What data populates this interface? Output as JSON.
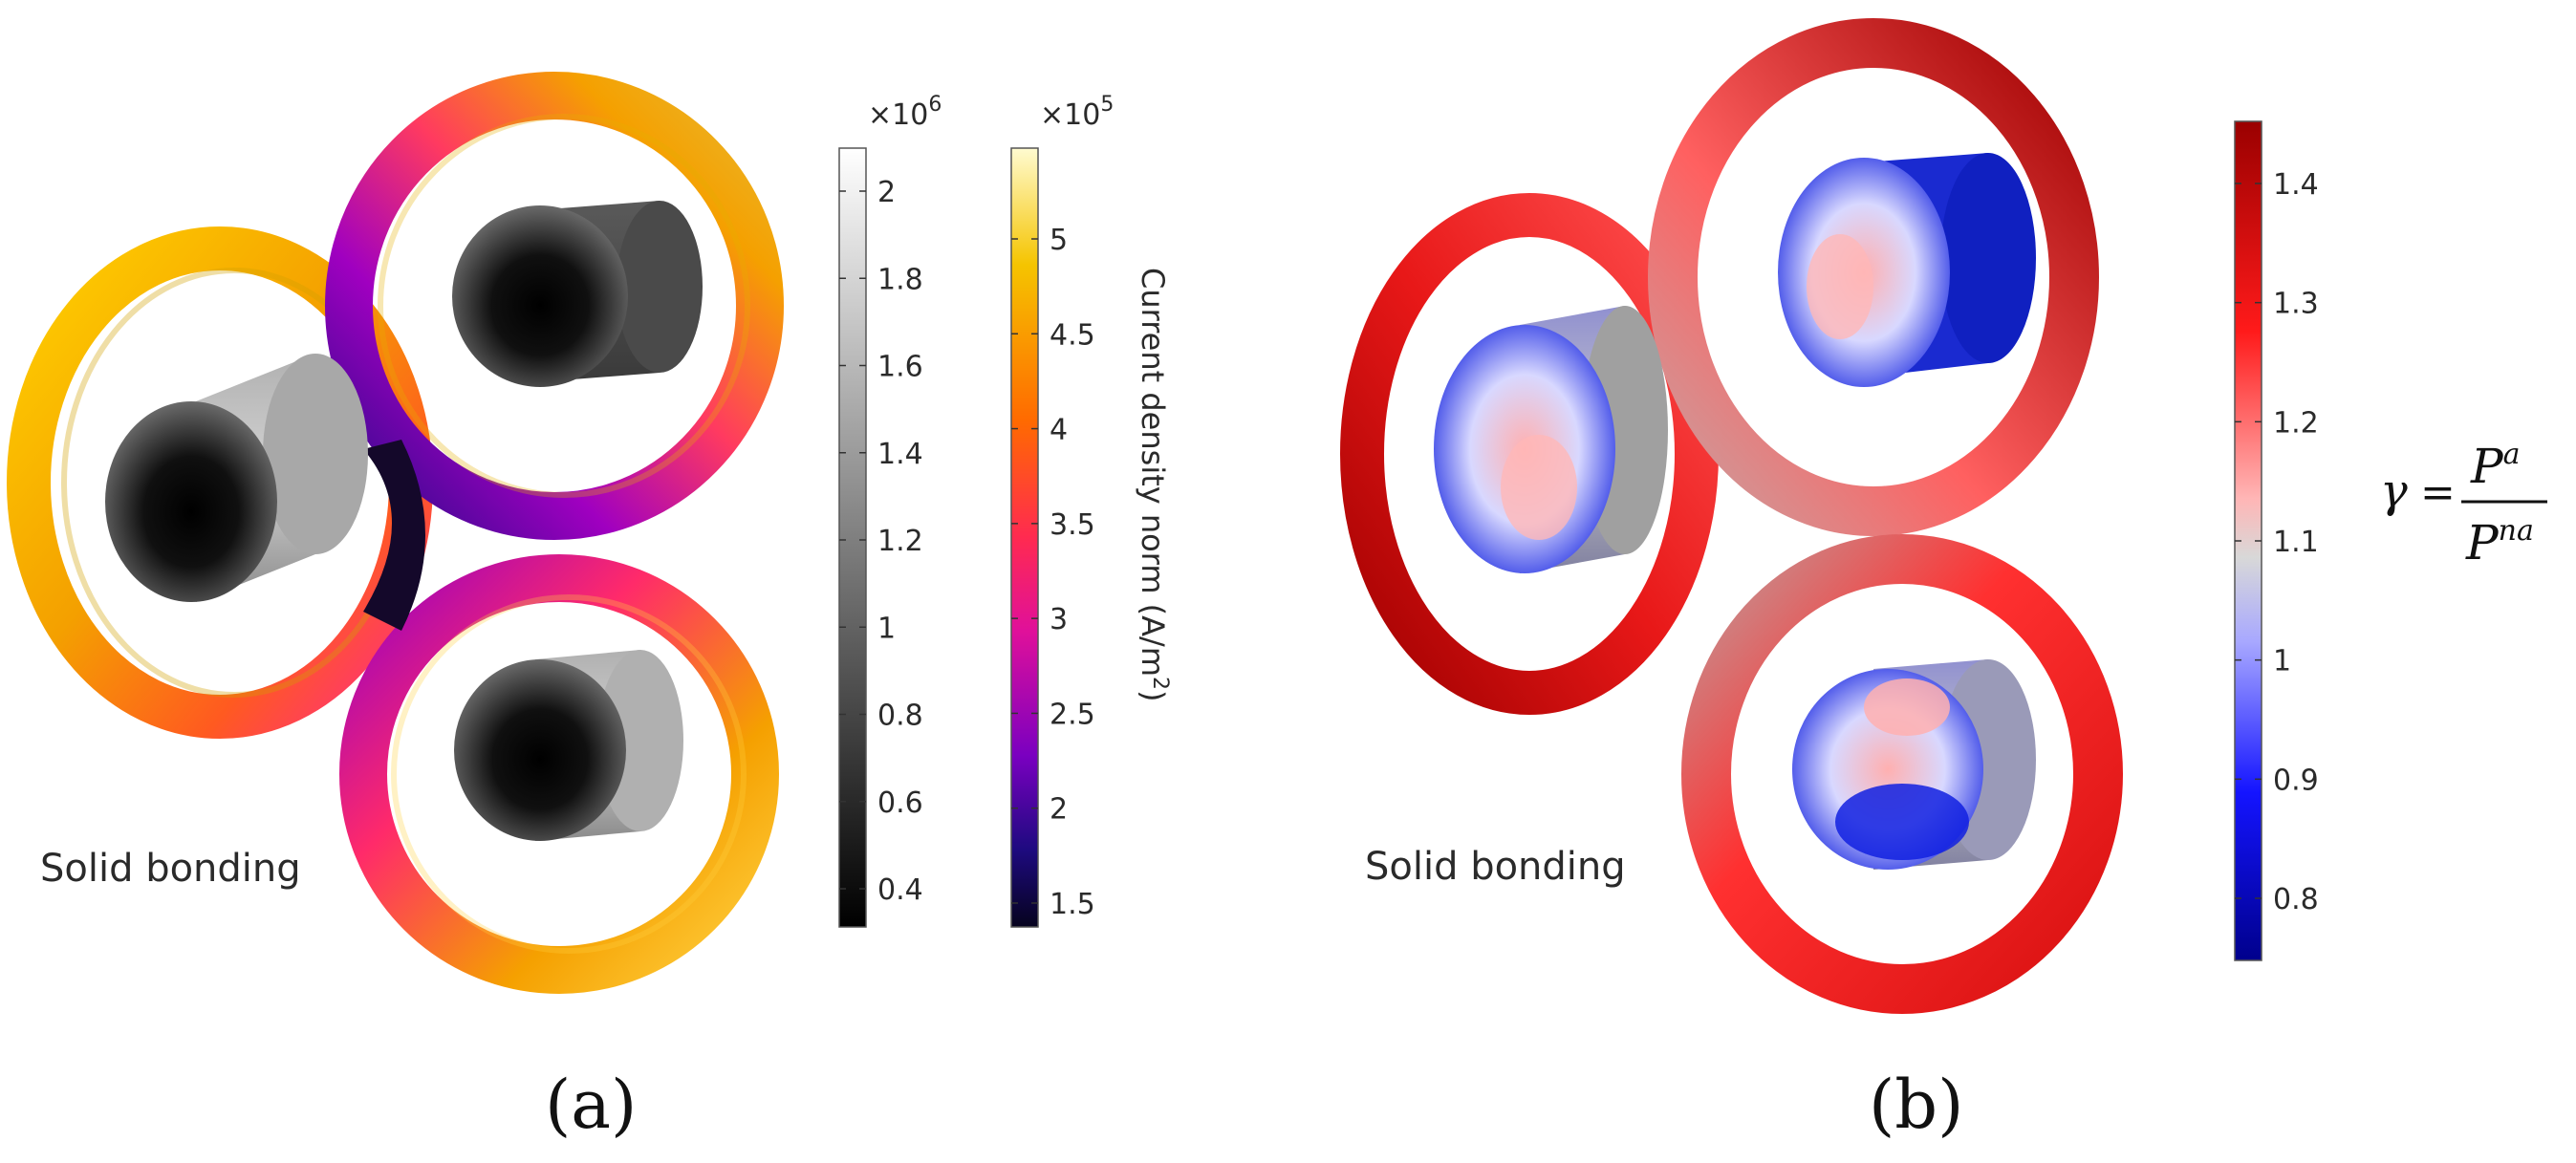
{
  "panel_a": {
    "label": "(a)",
    "bonding_text": "Solid bonding",
    "gray_colorbar": {
      "exponent_base": "×10",
      "exponent_power": "6",
      "ticks": [
        "2",
        "1.8",
        "1.6",
        "1.4",
        "1.2",
        "1",
        "0.8",
        "0.6",
        "0.4"
      ],
      "colors": [
        "#ffffff",
        "#000000"
      ]
    },
    "heat_colorbar": {
      "exponent_base": "×10",
      "exponent_power": "5",
      "ticks": [
        "5",
        "4.5",
        "4",
        "3.5",
        "3",
        "2.5",
        "2",
        "1.5"
      ],
      "title_main": "Current density norm (A/m",
      "title_sup": "2",
      "title_close": ")",
      "colors": [
        "#ffffa0",
        "#f5b500",
        "#ff6a00",
        "#ff2a40",
        "#e0109a",
        "#8a00c0",
        "#2c0a90",
        "#0a0530"
      ]
    },
    "colors": {
      "ring_hot": "#f5b500",
      "ring_mid": "#ff3a6a",
      "ring_cool": "#3a0a9a"
    }
  },
  "panel_b": {
    "label": "(b)",
    "bonding_text": "Solid bonding",
    "colorbar": {
      "ticks": [
        "1.4",
        "1.3",
        "1.2",
        "1.1",
        "1",
        "0.9",
        "0.8"
      ],
      "colors": [
        "#a00000",
        "#ff2020",
        "#ffb0b0",
        "#d0d0d0",
        "#a0a0ff",
        "#1010ff",
        "#000090"
      ]
    },
    "formula": {
      "gamma": "γ",
      "equals": "=",
      "numerator": "P",
      "num_sup": "a",
      "denominator": "P",
      "den_sup": "na"
    }
  }
}
